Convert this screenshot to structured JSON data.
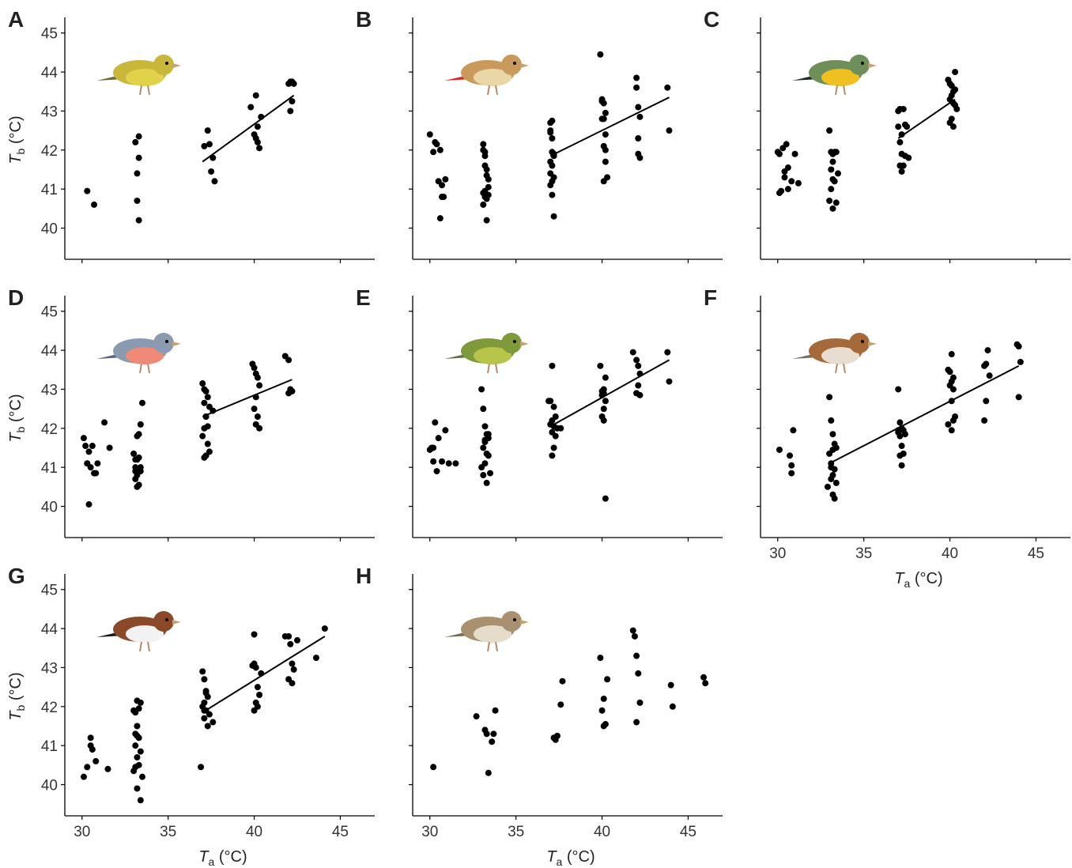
{
  "chart_data": [
    {
      "panel": "A",
      "type": "scatter",
      "xlabel": "",
      "ylabel": "T_b (°C)",
      "xlim": [
        29,
        47
      ],
      "ylim": [
        39.2,
        45.4
      ],
      "x_ticks": [
        30,
        35,
        40,
        45
      ],
      "y_ticks": [
        40,
        41,
        42,
        43,
        44,
        45
      ],
      "x": [
        30.3,
        30.7,
        33.1,
        33.2,
        33.2,
        33.3,
        33.3,
        33.3,
        37.1,
        37.3,
        37.4,
        37.5,
        37.6,
        37.7,
        39.8,
        40.0,
        40.1,
        40.2,
        40.3,
        40.4,
        40.1,
        40.2,
        42.0,
        42.1,
        42.2,
        42.3,
        42.2,
        42.1
      ],
      "y": [
        40.95,
        40.6,
        42.2,
        41.4,
        40.7,
        40.2,
        42.35,
        41.8,
        42.1,
        42.5,
        42.15,
        41.45,
        41.8,
        41.2,
        43.1,
        42.4,
        42.3,
        42.2,
        42.05,
        42.85,
        43.4,
        42.6,
        43.7,
        43.75,
        43.75,
        43.7,
        43.25,
        43.0
      ],
      "fit": {
        "x": [
          37.0,
          42.3
        ],
        "y": [
          41.7,
          43.4
        ]
      },
      "grid": false,
      "bird": "citril-finch"
    },
    {
      "panel": "B",
      "type": "scatter",
      "xlabel": "",
      "ylabel": "",
      "xlim": [
        29,
        47
      ],
      "ylim": [
        39.2,
        45.4
      ],
      "x_ticks": [
        30,
        35,
        40,
        45
      ],
      "y_ticks": [
        40,
        41,
        42,
        43,
        44,
        45
      ],
      "x": [
        30.0,
        30.2,
        30.4,
        30.3,
        30.6,
        30.5,
        30.7,
        30.9,
        30.8,
        30.7,
        30.6,
        33.1,
        33.1,
        33.2,
        33.2,
        33.3,
        33.3,
        33.4,
        33.2,
        33.1,
        33.4,
        33.3,
        33.2,
        33.1,
        33.3,
        33.4,
        33.2,
        37.0,
        37.1,
        37.0,
        37.2,
        37.1,
        37.0,
        37.2,
        37.1,
        37.0,
        37.1,
        37.2,
        37.0,
        37.1,
        37.2,
        37.1,
        37.0,
        39.9,
        40.0,
        40.1,
        40.0,
        40.2,
        40.1,
        40.0,
        40.2,
        40.1,
        40.2,
        40.3,
        40.1,
        40.2,
        42.0,
        42.0,
        42.1,
        42.2,
        42.1,
        42.2,
        42.1,
        43.8,
        43.9
      ],
      "y": [
        42.4,
        41.95,
        42.15,
        42.2,
        42.0,
        41.2,
        41.1,
        41.25,
        40.8,
        40.8,
        40.25,
        42.0,
        42.15,
        41.85,
        41.6,
        41.5,
        41.35,
        41.25,
        40.95,
        40.9,
        40.85,
        40.75,
        40.8,
        40.6,
        40.2,
        41.05,
        41.95,
        42.7,
        42.75,
        42.5,
        41.9,
        41.95,
        41.7,
        41.85,
        41.6,
        41.4,
        41.2,
        41.3,
        41.1,
        40.85,
        40.3,
        42.3,
        42.45,
        44.45,
        43.25,
        43.2,
        43.3,
        42.95,
        42.8,
        42.8,
        42.4,
        42.1,
        41.7,
        41.3,
        41.2,
        42.0,
        43.85,
        43.6,
        43.1,
        42.85,
        42.3,
        41.8,
        41.9,
        43.6,
        42.5
      ],
      "fit": {
        "x": [
          37.0,
          43.9
        ],
        "y": [
          41.85,
          43.35
        ]
      },
      "grid": false,
      "bird": "goldfinch"
    },
    {
      "panel": "C",
      "type": "scatter",
      "xlabel": "",
      "ylabel": "",
      "xlim": [
        29,
        47
      ],
      "ylim": [
        39.2,
        45.4
      ],
      "x_ticks": [
        30,
        35,
        40,
        45
      ],
      "y_ticks": [
        40,
        41,
        42,
        43,
        44,
        45
      ],
      "x": [
        30.0,
        30.1,
        30.3,
        30.5,
        30.4,
        30.6,
        30.8,
        31.0,
        31.2,
        30.2,
        30.1,
        30.4,
        30.6,
        33.0,
        33.1,
        33.2,
        33.4,
        33.3,
        33.2,
        33.1,
        33.3,
        33.2,
        33.1,
        33.5,
        33.4,
        33.0,
        33.2,
        37.0,
        37.1,
        37.3,
        37.4,
        37.5,
        37.2,
        37.1,
        37.0,
        37.2,
        37.4,
        37.6,
        37.3,
        37.2,
        37.1,
        39.9,
        40.0,
        40.1,
        40.2,
        40.3,
        40.1,
        40.0,
        40.2,
        40.3,
        40.4,
        40.1,
        40.0,
        40.2,
        40.3
      ],
      "y": [
        41.95,
        41.9,
        42.05,
        42.15,
        41.45,
        41.55,
        41.2,
        41.9,
        41.15,
        40.95,
        40.9,
        41.3,
        41.0,
        42.5,
        41.95,
        41.9,
        41.95,
        41.95,
        41.7,
        41.5,
        41.2,
        41.25,
        41.0,
        41.4,
        40.65,
        40.7,
        40.5,
        43.0,
        43.05,
        43.05,
        42.65,
        42.6,
        42.4,
        42.2,
        42.6,
        41.9,
        41.85,
        41.8,
        41.6,
        41.45,
        41.6,
        43.8,
        43.7,
        43.65,
        43.5,
        43.55,
        43.4,
        43.3,
        43.2,
        43.15,
        43.05,
        42.8,
        42.7,
        42.6,
        44.0
      ],
      "fit": {
        "x": [
          37.0,
          40.3
        ],
        "y": [
          42.3,
          43.3
        ]
      },
      "grid": false,
      "bird": "great-tit"
    },
    {
      "panel": "D",
      "type": "scatter",
      "xlabel": "",
      "ylabel": "T_b (°C)",
      "xlim": [
        29,
        47
      ],
      "ylim": [
        39.2,
        45.4
      ],
      "x_ticks": [
        30,
        35,
        40,
        45
      ],
      "y_ticks": [
        40,
        41,
        42,
        43,
        44,
        45
      ],
      "x": [
        30.1,
        30.2,
        30.4,
        30.6,
        30.3,
        30.5,
        30.8,
        30.9,
        31.3,
        31.6,
        30.7,
        30.4,
        30.3,
        33.0,
        33.1,
        33.2,
        33.3,
        33.4,
        33.5,
        33.3,
        33.2,
        33.1,
        33.4,
        33.2,
        33.1,
        33.3,
        33.2,
        33.1,
        33.4,
        37.0,
        37.1,
        37.2,
        37.3,
        37.4,
        37.2,
        37.1,
        37.0,
        37.3,
        37.4,
        37.2,
        37.1,
        37.3,
        37.6,
        37.1,
        37.2,
        39.9,
        40.0,
        40.1,
        40.2,
        40.3,
        40.1,
        40.0,
        40.2,
        40.1,
        40.3,
        41.8,
        42.0,
        42.1,
        42.2,
        42.0
      ],
      "y": [
        41.75,
        41.55,
        41.4,
        41.55,
        41.1,
        41.0,
        40.85,
        41.1,
        42.15,
        41.5,
        40.85,
        40.05,
        41.1,
        41.35,
        41.2,
        41.8,
        41.85,
        42.1,
        42.65,
        41.25,
        41.2,
        41.0,
        40.9,
        40.8,
        40.7,
        40.55,
        40.5,
        40.9,
        41.0,
        43.15,
        43.0,
        42.95,
        42.8,
        42.55,
        42.3,
        42.0,
        41.8,
        41.6,
        41.4,
        41.3,
        41.25,
        42.05,
        42.45,
        42.65,
        42.3,
        43.65,
        43.55,
        43.4,
        43.3,
        43.1,
        42.8,
        42.5,
        42.3,
        42.1,
        42.0,
        43.85,
        43.75,
        43.0,
        42.95,
        42.9
      ],
      "fit": {
        "x": [
          37.0,
          42.2
        ],
        "y": [
          42.3,
          43.25
        ]
      },
      "grid": false,
      "bird": "chaffinch"
    },
    {
      "panel": "E",
      "type": "scatter",
      "xlabel": "",
      "ylabel": "",
      "xlim": [
        29,
        47
      ],
      "ylim": [
        39.2,
        45.4
      ],
      "x_ticks": [
        30,
        35,
        40,
        45
      ],
      "y_ticks": [
        40,
        41,
        42,
        43,
        44,
        45
      ],
      "x": [
        30.0,
        30.1,
        30.3,
        30.5,
        30.2,
        30.7,
        30.9,
        31.1,
        31.5,
        30.4,
        30.2,
        33.0,
        33.1,
        33.2,
        33.3,
        33.4,
        33.2,
        33.1,
        33.3,
        33.4,
        33.2,
        33.0,
        33.5,
        33.1,
        33.3,
        33.4,
        33.2,
        36.9,
        37.0,
        37.1,
        37.2,
        37.3,
        37.1,
        37.0,
        37.2,
        37.4,
        37.6,
        37.1,
        37.3,
        37.2,
        37.1,
        39.9,
        40.0,
        40.1,
        40.2,
        40.1,
        40.0,
        40.2,
        40.1,
        40.0,
        40.1,
        40.2,
        41.8,
        42.0,
        42.1,
        42.2,
        42.1,
        42.0,
        42.2,
        43.8,
        43.9
      ],
      "y": [
        41.45,
        41.5,
        42.15,
        41.75,
        41.15,
        41.15,
        41.95,
        41.1,
        41.1,
        40.9,
        41.5,
        43.0,
        42.5,
        42.05,
        41.85,
        41.75,
        41.7,
        41.5,
        41.35,
        41.3,
        41.1,
        41.0,
        40.85,
        40.8,
        40.6,
        41.85,
        41.65,
        42.7,
        42.7,
        43.6,
        42.55,
        42.3,
        42.2,
        42.1,
        42.05,
        42.0,
        42.0,
        41.9,
        41.8,
        41.5,
        41.3,
        43.6,
        42.95,
        42.9,
        43.3,
        43.0,
        42.85,
        42.7,
        42.5,
        42.3,
        42.2,
        40.2,
        43.95,
        43.75,
        43.6,
        43.4,
        43.1,
        42.9,
        42.85,
        43.95,
        43.2
      ],
      "fit": {
        "x": [
          37.0,
          43.9
        ],
        "y": [
          42.05,
          43.75
        ]
      },
      "grid": false,
      "bird": "greenfinch"
    },
    {
      "panel": "F",
      "type": "scatter",
      "xlabel": "T_a (°C)",
      "ylabel": "",
      "xlim": [
        29,
        47
      ],
      "ylim": [
        39.2,
        45.4
      ],
      "x_ticks": [
        30,
        35,
        40,
        45
      ],
      "y_ticks": [
        40,
        41,
        42,
        43,
        44,
        45
      ],
      "x": [
        30.1,
        30.7,
        30.8,
        30.8,
        30.9,
        33.0,
        33.1,
        33.2,
        33.3,
        33.4,
        33.2,
        33.1,
        33.3,
        33.2,
        33.1,
        33.4,
        33.2,
        33.3,
        32.9,
        33.1,
        33.0,
        37.0,
        37.1,
        37.2,
        37.3,
        37.4,
        37.1,
        37.0,
        37.2,
        37.3,
        37.1,
        37.2,
        37.0,
        39.9,
        40.0,
        40.1,
        40.2,
        40.1,
        40.0,
        40.2,
        40.1,
        40.3,
        40.2,
        39.9,
        40.1,
        42.0,
        42.1,
        42.2,
        42.3,
        42.0,
        42.1,
        43.9,
        44.0,
        44.1,
        44.0
      ],
      "y": [
        41.45,
        41.3,
        41.05,
        40.85,
        41.95,
        42.8,
        42.2,
        41.85,
        41.6,
        41.5,
        41.45,
        41.1,
        40.95,
        40.8,
        40.7,
        40.6,
        40.3,
        40.2,
        40.5,
        41.0,
        41.35,
        43.0,
        42.15,
        42.0,
        41.95,
        41.85,
        41.8,
        41.95,
        41.55,
        41.35,
        41.3,
        41.05,
        41.9,
        43.5,
        43.45,
        43.9,
        43.3,
        43.2,
        43.1,
        43.0,
        42.7,
        42.3,
        42.2,
        42.1,
        41.95,
        43.6,
        43.65,
        44.0,
        43.35,
        42.2,
        42.7,
        44.15,
        44.1,
        43.7,
        42.8
      ],
      "fit": {
        "x": [
          33.0,
          44.0
        ],
        "y": [
          41.1,
          43.6
        ]
      },
      "grid": false,
      "bird": "house-sparrow"
    },
    {
      "panel": "G",
      "type": "scatter",
      "xlabel": "T_a (°C)",
      "ylabel": "T_b (°C)",
      "xlim": [
        29,
        47
      ],
      "ylim": [
        39.2,
        45.4
      ],
      "x_ticks": [
        30,
        35,
        40,
        45
      ],
      "y_ticks": [
        40,
        41,
        42,
        43,
        44,
        45
      ],
      "x": [
        30.1,
        30.3,
        30.5,
        30.6,
        30.5,
        30.8,
        31.5,
        33.0,
        33.1,
        33.2,
        33.3,
        33.4,
        33.2,
        33.1,
        33.3,
        33.2,
        33.1,
        33.4,
        33.2,
        33.3,
        33.1,
        33.0,
        33.5,
        33.4,
        33.2,
        36.9,
        37.0,
        37.1,
        37.2,
        37.3,
        37.1,
        37.0,
        37.2,
        37.4,
        37.6,
        37.1,
        37.3,
        37.2,
        37.1,
        39.9,
        40.0,
        40.1,
        40.2,
        40.3,
        40.1,
        40.0,
        40.2,
        40.4,
        40.0,
        41.8,
        42.0,
        42.1,
        42.2,
        42.3,
        42.0,
        42.2,
        42.5,
        43.6,
        44.1
      ],
      "y": [
        40.2,
        40.45,
        41.2,
        40.9,
        41.0,
        40.6,
        40.4,
        41.9,
        41.85,
        42.15,
        41.95,
        42.1,
        41.5,
        41.3,
        41.2,
        41.25,
        41.0,
        40.85,
        40.7,
        40.5,
        40.45,
        40.35,
        40.2,
        39.6,
        39.9,
        40.45,
        42.9,
        42.7,
        42.4,
        42.25,
        42.1,
        42.0,
        41.9,
        41.8,
        41.6,
        41.7,
        41.5,
        42.35,
        41.9,
        43.05,
        43.1,
        43.0,
        42.5,
        42.3,
        42.1,
        41.9,
        42.0,
        42.85,
        43.85,
        43.8,
        43.8,
        43.6,
        43.1,
        42.95,
        42.7,
        42.6,
        43.7,
        43.25,
        44.0
      ],
      "fit": {
        "x": [
          37.0,
          44.1
        ],
        "y": [
          41.85,
          43.8
        ]
      },
      "grid": false,
      "bird": "spanish-sparrow"
    },
    {
      "panel": "H",
      "type": "scatter",
      "xlabel": "T_a (°C)",
      "ylabel": "",
      "xlim": [
        29,
        47
      ],
      "ylim": [
        39.2,
        45.4
      ],
      "x_ticks": [
        30,
        35,
        40,
        45
      ],
      "y_ticks": [
        40,
        41,
        42,
        43,
        44,
        45
      ],
      "x": [
        30.2,
        32.7,
        33.2,
        33.6,
        33.7,
        33.8,
        33.4,
        33.3,
        37.2,
        37.3,
        37.4,
        37.6,
        37.7,
        39.9,
        40.0,
        40.1,
        40.2,
        40.3,
        40.1,
        41.8,
        41.9,
        42.0,
        42.1,
        42.2,
        42.0,
        44.0,
        44.1,
        45.9,
        46.0
      ],
      "y": [
        40.45,
        41.75,
        41.4,
        41.1,
        41.3,
        41.9,
        40.3,
        41.3,
        41.2,
        41.15,
        41.25,
        42.05,
        42.65,
        43.25,
        41.9,
        42.2,
        41.55,
        42.7,
        41.5,
        43.95,
        43.8,
        43.3,
        42.85,
        42.1,
        41.6,
        42.55,
        42.0,
        42.75,
        42.6
      ],
      "grid": false,
      "bird": "crested-lark"
    }
  ]
}
